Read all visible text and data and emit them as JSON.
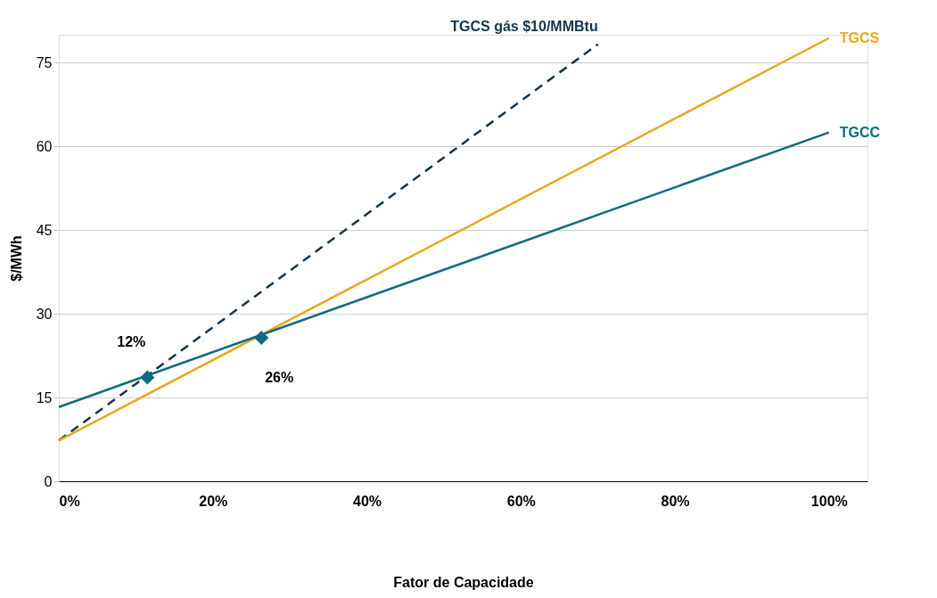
{
  "chart_data": {
    "type": "line",
    "xlabel": "Fator de Capacidade",
    "ylabel": "$/MWh",
    "xlim": [
      0,
      105
    ],
    "xticks": [
      {
        "value": 0,
        "label": "0%"
      },
      {
        "value": 20,
        "label": "20%"
      },
      {
        "value": 40,
        "label": "40%"
      },
      {
        "value": 60,
        "label": "60%"
      },
      {
        "value": 80,
        "label": "80%"
      },
      {
        "value": 100,
        "label": "100%"
      }
    ],
    "ylim": [
      0,
      80
    ],
    "yticks": [
      0,
      15,
      30,
      45,
      60,
      75
    ],
    "grid": "y",
    "series": [
      {
        "name": "TGCS gás $10/MMBtu",
        "color": "#13364d",
        "x": [
          0,
          70
        ],
        "values": [
          7.3,
          78.3
        ],
        "line_style": "dashed"
      },
      {
        "name": "TGCS",
        "color": "#e8a822",
        "x": [
          0,
          100
        ],
        "values": [
          7.3,
          79.4
        ],
        "line_style": "solid"
      },
      {
        "name": "TGCC",
        "color": "#0e6b80",
        "x": [
          0,
          100
        ],
        "values": [
          13.3,
          62.5
        ],
        "line_style": "solid"
      },
      {
        "type": "scatter",
        "color": "#0e6b80",
        "x": [
          11.5,
          26.3
        ],
        "values": [
          18.6,
          25.7
        ],
        "marker": "diamond"
      }
    ],
    "annotations": [
      {
        "text": "12%",
        "x": 11.5,
        "y": 18.6
      },
      {
        "text": "26%",
        "x": 26.3,
        "y": 25.7
      }
    ]
  }
}
